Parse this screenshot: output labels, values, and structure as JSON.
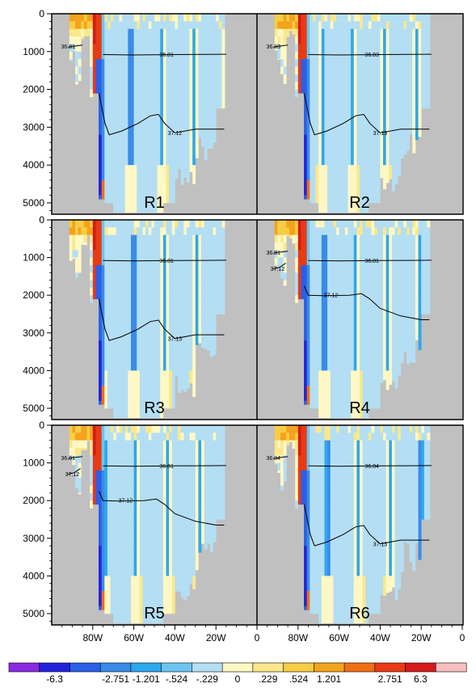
{
  "chart_data": {
    "type": "heatmap",
    "y_axis": {
      "ticks": [
        0,
        1000,
        2000,
        3000,
        4000,
        5000
      ],
      "lim": [
        0,
        5300
      ],
      "reversed": true
    },
    "x_axis": {
      "ticks": [
        "80W",
        "60W",
        "40W",
        "20W",
        "0"
      ],
      "tick_values": [
        -80,
        -60,
        -40,
        -20,
        0
      ],
      "lim": [
        -100,
        0
      ]
    },
    "colorbar": {
      "labels": [
        "-6.3",
        "-2.751",
        "-1.201",
        "-.524",
        "-.229",
        "0",
        ".229",
        ".524",
        "1.201",
        "2.751",
        "6.3"
      ],
      "colors": [
        "#8a2be2",
        "#2222dd",
        "#2a5fe8",
        "#3a8be8",
        "#2ea8ec",
        "#6cc5f0",
        "#b4def3",
        "#fff8c4",
        "#fbe88a",
        "#f7cd45",
        "#f4a31c",
        "#ef6f14",
        "#e83a14",
        "#d51a1a",
        "#f5bfbf"
      ]
    },
    "panels": [
      {
        "label": "R1",
        "contours": [
          {
            "label": "36.81",
            "level": 36.81
          },
          {
            "label": "36.81",
            "level": 36.81
          },
          {
            "label": "37.12",
            "level": 37.12
          }
        ]
      },
      {
        "label": "R2",
        "contours": [
          {
            "label": "36.83",
            "level": 36.83
          },
          {
            "label": "36.83",
            "level": 36.83
          },
          {
            "label": "37.13",
            "level": 37.13
          }
        ]
      },
      {
        "label": "R3",
        "contours": [
          {
            "label": "36.81",
            "level": 36.81
          },
          {
            "label": "37.13",
            "level": 37.13
          }
        ]
      },
      {
        "label": "R4",
        "contours": [
          {
            "label": "36.81",
            "level": 36.81
          },
          {
            "label": "37.12",
            "level": 37.12
          },
          {
            "label": "36.81",
            "level": 36.81
          },
          {
            "label": "37.12",
            "level": 37.12
          }
        ]
      },
      {
        "label": "R5",
        "contours": [
          {
            "label": "36.81",
            "level": 36.81
          },
          {
            "label": "37.12",
            "level": 37.12
          },
          {
            "label": "36.81",
            "level": 36.81
          },
          {
            "label": "37.12",
            "level": 37.12
          }
        ]
      },
      {
        "label": "R6",
        "contours": [
          {
            "label": "36.84",
            "level": 36.84
          },
          {
            "label": "36.84",
            "level": 36.84
          },
          {
            "label": "37.13",
            "level": 37.13
          }
        ]
      }
    ]
  }
}
